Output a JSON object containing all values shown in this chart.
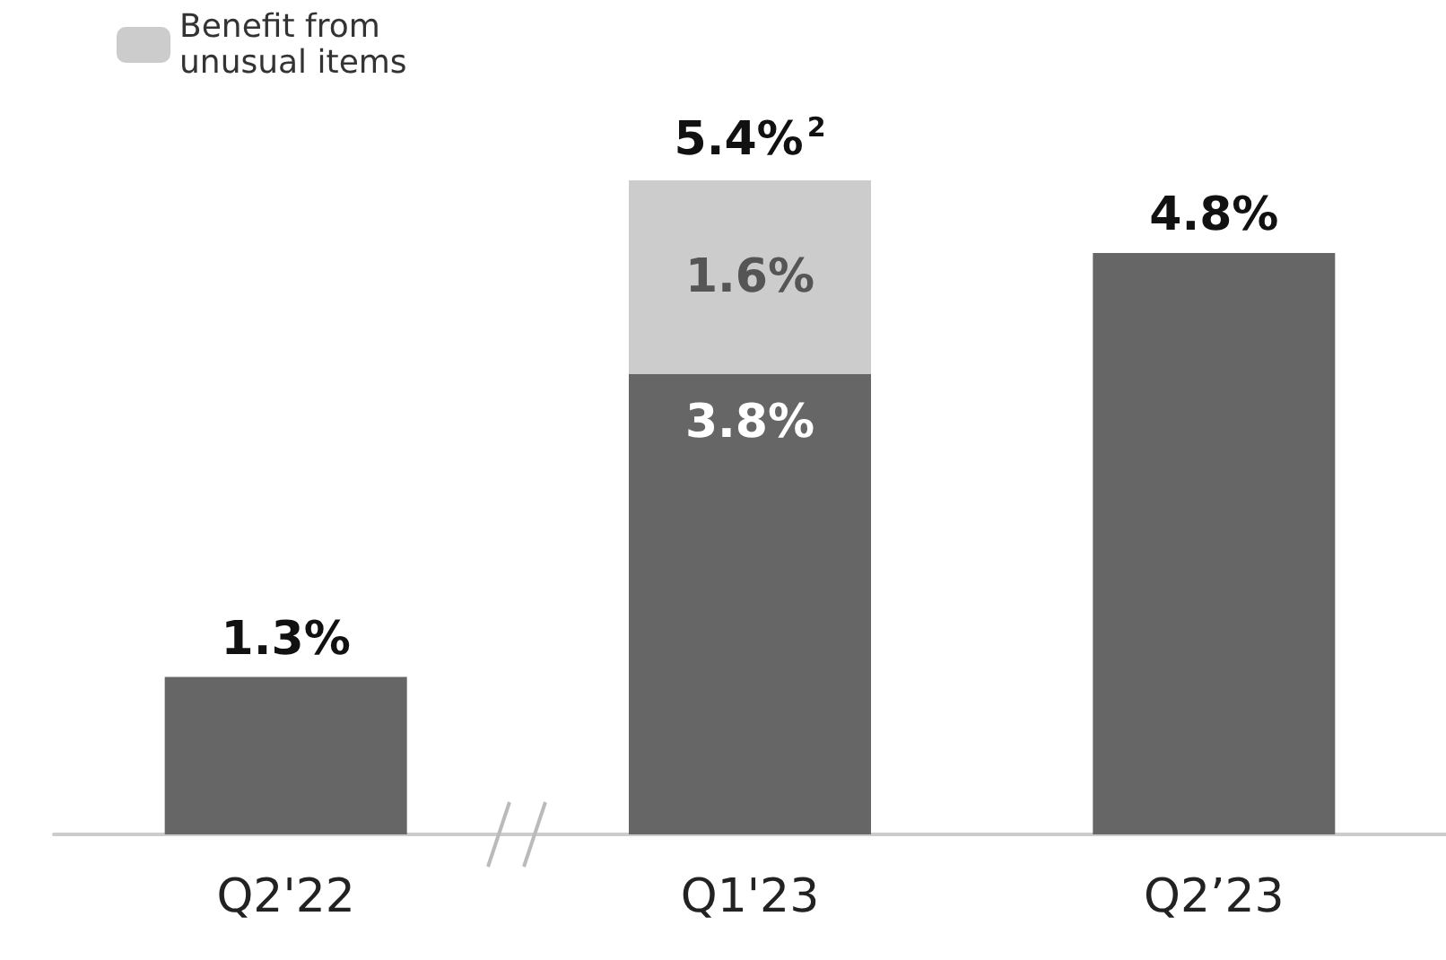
{
  "chart_data": {
    "type": "bar",
    "stacked": true,
    "categories": [
      "Q2'22",
      "Q1'23",
      "Q2’23"
    ],
    "series": [
      {
        "color": "#666666",
        "values": [
          1.3,
          3.8,
          4.8
        ],
        "value_labels": [
          "1.3%",
          "3.8%",
          "4.8%"
        ]
      },
      {
        "name": "Benefit from\nunusual items",
        "color": "#cccccc",
        "values": [
          null,
          1.6,
          null
        ],
        "value_labels": [
          null,
          "1.6%",
          null
        ]
      }
    ],
    "totals": [
      null,
      "5.4%$^{2}$",
      null
    ],
    "legend": "top left"
  }
}
